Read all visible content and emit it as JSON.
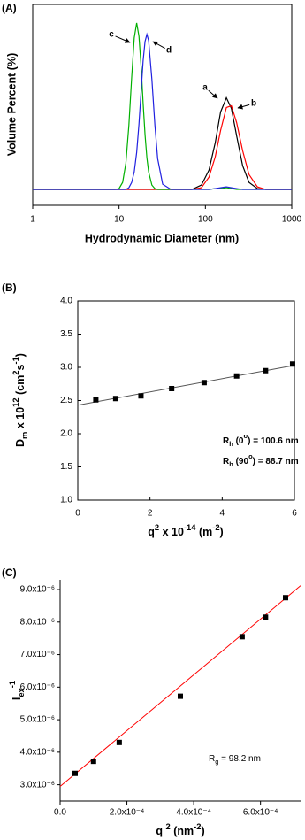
{
  "chart_data": [
    {
      "type": "line",
      "panel_label": "(A)",
      "x_label": "Hydrodynamic Diameter (nm)",
      "y_label": "Volume Percent (%)",
      "log_x": true,
      "xlim": [
        1,
        1000
      ],
      "xticks": [
        1,
        10,
        100,
        1000
      ],
      "ylim": [
        -1.8,
        21
      ],
      "x": [
        1,
        5,
        9,
        10,
        11,
        12,
        13,
        14,
        15,
        16,
        17,
        18,
        19,
        20,
        21,
        22,
        24,
        26,
        28,
        32,
        40,
        70,
        90,
        110,
        130,
        150,
        175,
        200,
        230,
        270,
        320,
        400,
        500,
        1000
      ],
      "series": [
        {
          "name": "a",
          "color": "#000000",
          "values": [
            0,
            0,
            0,
            0,
            0,
            0,
            0,
            0,
            0,
            0,
            0,
            0,
            0,
            0,
            0,
            0,
            0,
            0,
            0,
            0,
            0,
            0,
            0.5,
            2.2,
            5.3,
            8.8,
            10.4,
            9.2,
            6.1,
            2.7,
            0.8,
            0.1,
            0,
            0
          ]
        },
        {
          "name": "b",
          "color": "#ff0000",
          "values": [
            0,
            0,
            0,
            0,
            0,
            0,
            0,
            0,
            0,
            0,
            0,
            0,
            0,
            0,
            0,
            0,
            0,
            0,
            0,
            0,
            0,
            0,
            0.2,
            1.4,
            3.7,
            6.7,
            9.3,
            9.5,
            7.6,
            4.4,
            1.7,
            0.3,
            0,
            0
          ]
        },
        {
          "name": "c",
          "color": "#00b000",
          "values": [
            0,
            0,
            0,
            0.1,
            0.8,
            3.0,
            7.3,
            12.7,
            17.2,
            18.9,
            17.4,
            14.0,
            9.8,
            6.2,
            3.6,
            2.0,
            0.5,
            0.1,
            0,
            0,
            0,
            0,
            0,
            0,
            0.1,
            0.1,
            0.2,
            0.1,
            0,
            0,
            0,
            0,
            0,
            0
          ]
        },
        {
          "name": "d",
          "color": "#2020e0",
          "values": [
            0,
            0,
            0,
            0,
            0,
            0,
            0.2,
            0.8,
            2.0,
            4.2,
            7.4,
            11.1,
            14.6,
            16.8,
            17.6,
            16.9,
            12.5,
            7.3,
            3.5,
            0.6,
            0,
            0,
            0,
            0,
            0.1,
            0.2,
            0.3,
            0.2,
            0.1,
            0,
            0,
            0,
            0,
            0
          ]
        }
      ]
    },
    {
      "type": "scatter",
      "panel_label": "(B)",
      "x_label": [
        "q",
        "2",
        " x 10",
        "-14",
        " (m",
        "-2",
        ")"
      ],
      "y_label": [
        "D",
        "m",
        " x 10",
        "12",
        " (cm",
        "2",
        "s",
        "-1",
        ")"
      ],
      "xlim": [
        0,
        6
      ],
      "xticks": [
        0,
        2,
        4,
        6
      ],
      "ylim": [
        1,
        4
      ],
      "yticks": [
        {
          "value": 1,
          "label": "1.0"
        },
        {
          "value": 1.5,
          "label": "1.5"
        },
        {
          "value": 2,
          "label": "2.0"
        },
        {
          "value": 2.5,
          "label": "2.5"
        },
        {
          "value": 3,
          "label": "3.0"
        },
        {
          "value": 3.5,
          "label": "3.5"
        },
        {
          "value": 4,
          "label": "4.0"
        }
      ],
      "x": [
        0.5,
        1.05,
        1.75,
        2.6,
        3.5,
        4.4,
        5.2,
        5.95
      ],
      "values": [
        2.51,
        2.53,
        2.57,
        2.68,
        2.77,
        2.87,
        2.95,
        3.05
      ],
      "color": "#000000",
      "fit": {
        "x": [
          0,
          6
        ],
        "values": [
          2.43,
          3.03
        ],
        "color": "#555555"
      },
      "annotations": [
        [
          "R",
          "h",
          " (0",
          "o",
          ") = 100.6 nm"
        ],
        [
          "R",
          "h",
          " (90",
          "o",
          ") = 88.7 nm"
        ]
      ]
    },
    {
      "type": "scatter",
      "panel_label": "(C)",
      "x_label": [
        "q ",
        "2",
        " (nm",
        "-2",
        ")"
      ],
      "y_label": [
        "I",
        "ex",
        "-1"
      ],
      "xlim": [
        0,
        0.00072
      ],
      "xticks": [
        {
          "value": 0,
          "label": "0.0"
        },
        {
          "value": 0.0002,
          "label": "2.0x10⁻⁴"
        },
        {
          "value": 0.0004,
          "label": "4.0x10⁻⁴"
        },
        {
          "value": 0.0006,
          "label": "6.0x10⁻⁴"
        }
      ],
      "ylim": [
        2.5e-06,
        9.3e-06
      ],
      "yticks": [
        {
          "value": 3e-06,
          "label": "3.0x10⁻⁶"
        },
        {
          "value": 4e-06,
          "label": "4.0x10⁻⁶"
        },
        {
          "value": 5e-06,
          "label": "5.0x10⁻⁶"
        },
        {
          "value": 6e-06,
          "label": "6.0x10⁻⁶"
        },
        {
          "value": 7e-06,
          "label": "7.0x10⁻⁶"
        },
        {
          "value": 8e-06,
          "label": "8.0x10⁻⁶"
        },
        {
          "value": 9e-06,
          "label": "9.0x10⁻⁶"
        }
      ],
      "x": [
        4.5e-05,
        0.0001,
        0.000177,
        0.00036,
        0.000545,
        0.000615,
        0.000675
      ],
      "values": [
        3.35e-06,
        3.72e-06,
        4.3e-06,
        5.72e-06,
        7.55e-06,
        8.15e-06,
        8.75e-06
      ],
      "color": "#000000",
      "fit": {
        "x": [
          0,
          0.00072
        ],
        "values": [
          2.95e-06,
          9.12e-06
        ],
        "color": "#ff0000"
      },
      "annotations": [
        [
          "R",
          "g",
          " = 98.2 nm"
        ]
      ]
    }
  ]
}
